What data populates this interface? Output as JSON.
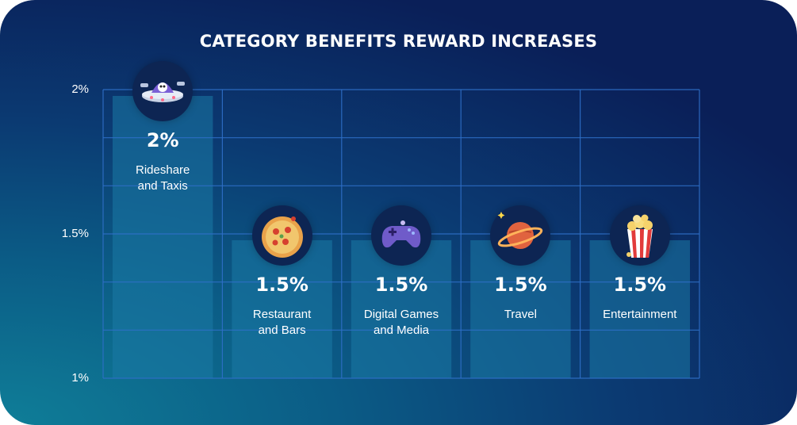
{
  "chart_data": {
    "type": "bar",
    "title": "CATEGORY BENEFITS REWARD INCREASES",
    "categories": [
      "Rideshare\nand Taxis",
      "Restaurant\nand Bars",
      "Digital Games\nand Media",
      "Travel",
      "Entertainment"
    ],
    "values": [
      2,
      1.5,
      1.5,
      1.5,
      1.5
    ],
    "value_labels": [
      "2%",
      "1.5%",
      "1.5%",
      "1.5%",
      "1.5%"
    ],
    "icons": [
      "ufo-icon",
      "pizza-icon",
      "gamepad-icon",
      "planet-icon",
      "popcorn-icon"
    ],
    "yticks": [
      "2%",
      "1.5%",
      "1%"
    ],
    "ylim": [
      1,
      2
    ],
    "grid": true,
    "colors": {
      "bar": "#1b7aa6",
      "grid": "#2f6fc8",
      "text": "#ffffff",
      "icon_bg": "#0d2553"
    }
  }
}
